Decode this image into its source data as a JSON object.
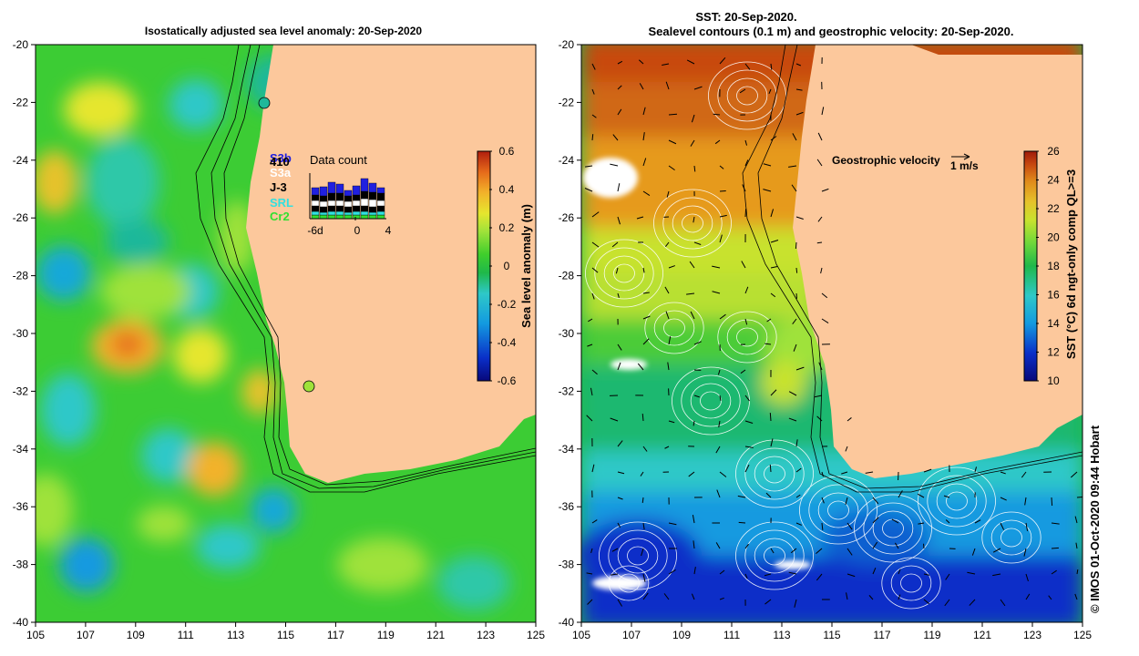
{
  "left_panel": {
    "title": "Isostatically adjusted sea level anomaly: 20-Sep-2020",
    "x_ticks": [
      "105",
      "107",
      "109",
      "111",
      "113",
      "115",
      "117",
      "119",
      "121",
      "123",
      "125"
    ],
    "y_ticks": [
      "-20",
      "-22",
      "-24",
      "-26",
      "-28",
      "-30",
      "-32",
      "-34",
      "-36",
      "-38",
      "-40"
    ],
    "colorbar": {
      "label": "Sea level anomaly (m)",
      "ticks": [
        "0.6",
        "0.4",
        "0.2",
        "0",
        "-0.2",
        "-0.4",
        "-0.6"
      ],
      "colors": [
        "#08087a",
        "#0a2fc8",
        "#139ae0",
        "#2ec8c8",
        "#1fb84a",
        "#3fce2c",
        "#9fe23a",
        "#e6e62e",
        "#f2b22a",
        "#e66a1a",
        "#b01e0e"
      ]
    },
    "data_count_inset": {
      "title": "Data count",
      "satellites": [
        {
          "name": "S3b",
          "color": "#2020e0"
        },
        {
          "name": "410",
          "color": "#000000"
        },
        {
          "name": "S3a",
          "color": "#ffffff"
        },
        {
          "name": "J-3",
          "color": "#000000"
        },
        {
          "name": "SRL",
          "color": "#30e0e0"
        },
        {
          "name": "Cr2",
          "color": "#30e030"
        }
      ],
      "x_ticks": [
        "-6d",
        "0",
        "4"
      ]
    }
  },
  "right_panel": {
    "title_line1": "SST: 20-Sep-2020.",
    "title_line2": "Sealevel contours (0.1 m) and geostrophic velocity: 20-Sep-2020.",
    "x_ticks": [
      "105",
      "107",
      "109",
      "111",
      "113",
      "115",
      "117",
      "119",
      "121",
      "123",
      "125"
    ],
    "y_ticks": [
      "-20",
      "-22",
      "-24",
      "-26",
      "-28",
      "-30",
      "-32",
      "-34",
      "-36",
      "-38",
      "-40"
    ],
    "velocity_key": {
      "label": "Geostrophic velocity",
      "unit": "1 m/s"
    },
    "colorbar": {
      "label": "SST (°C) 6d ngt-only comp QL>=3",
      "ticks": [
        "26",
        "24",
        "22",
        "20",
        "18",
        "16",
        "14",
        "12",
        "10"
      ],
      "colors": [
        "#08087a",
        "#0a2fc8",
        "#139ae0",
        "#2ec8c8",
        "#1fb84a",
        "#6fd83a",
        "#c8e22e",
        "#e6c22a",
        "#e08a1a",
        "#c84a10",
        "#a01a0a"
      ]
    }
  },
  "credit": "© IMOS 01-Oct-2020 09:44 Hobart",
  "colors": {
    "land": "#fcc89c",
    "coast": "#000000",
    "bathymetry": "#000000"
  }
}
